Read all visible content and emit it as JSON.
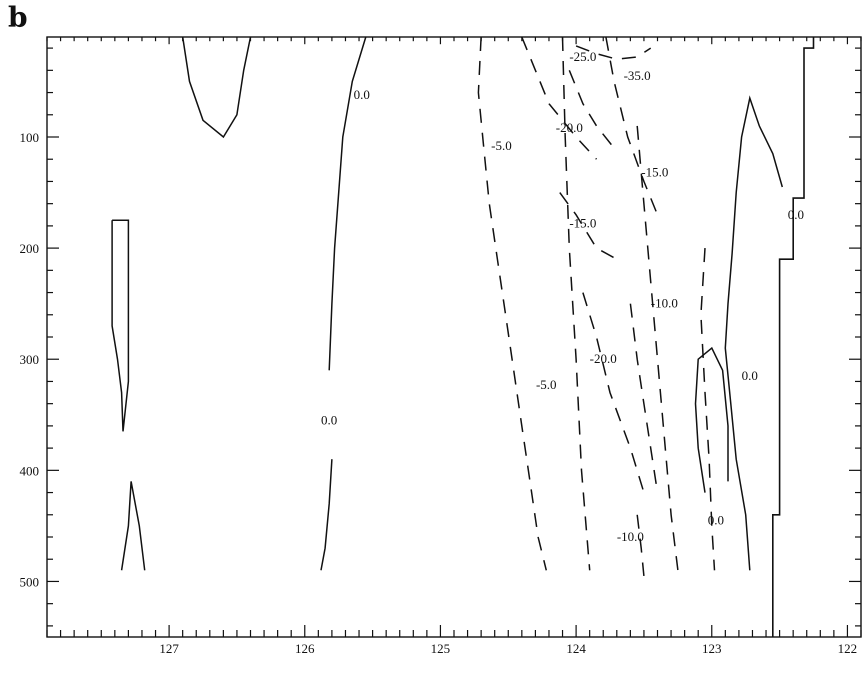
{
  "panel_label": "b",
  "chart_data": {
    "type": "contour",
    "title": "",
    "xlabel": "",
    "ylabel": "",
    "xlim": [
      127.9,
      121.9
    ],
    "ylim": [
      550,
      10
    ],
    "x_reversed": true,
    "y_reversed": true,
    "grid": false,
    "x_ticks": [
      127,
      126,
      125,
      124,
      123,
      122
    ],
    "y_ticks": [
      100,
      200,
      300,
      400,
      500
    ],
    "contour_styles": {
      "solid": "value >= 0",
      "dashed": "value < 0"
    },
    "contours": [
      {
        "level": 0.0,
        "style": "solid",
        "points": [
          [
            126.9,
            10
          ],
          [
            126.85,
            50
          ],
          [
            126.75,
            85
          ],
          [
            126.6,
            100
          ],
          [
            126.5,
            80
          ],
          [
            126.45,
            40
          ],
          [
            126.4,
            10
          ]
        ]
      },
      {
        "level": 0.0,
        "style": "solid",
        "points": [
          [
            125.55,
            10
          ],
          [
            125.65,
            50
          ],
          [
            125.72,
            100
          ],
          [
            125.75,
            150
          ],
          [
            125.78,
            200
          ],
          [
            125.8,
            250
          ],
          [
            125.82,
            310
          ]
        ]
      },
      {
        "level": 0.0,
        "style": "solid",
        "points": [
          [
            125.8,
            390
          ],
          [
            125.82,
            430
          ],
          [
            125.85,
            470
          ],
          [
            125.88,
            490
          ]
        ]
      },
      {
        "level": 0.0,
        "style": "solid",
        "points": [
          [
            127.42,
            175
          ],
          [
            127.42,
            240
          ],
          [
            127.42,
            270
          ],
          [
            127.38,
            300
          ],
          [
            127.35,
            330
          ],
          [
            127.34,
            365
          ],
          [
            127.3,
            320
          ],
          [
            127.3,
            270
          ],
          [
            127.3,
            220
          ],
          [
            127.3,
            175
          ],
          [
            127.42,
            175
          ]
        ]
      },
      {
        "level": 0.0,
        "style": "solid",
        "points": [
          [
            127.35,
            490
          ],
          [
            127.3,
            450
          ],
          [
            127.28,
            410
          ],
          [
            127.22,
            450
          ],
          [
            127.18,
            490
          ]
        ]
      },
      {
        "level": 0.0,
        "style": "solid",
        "points": [
          [
            122.72,
            490
          ],
          [
            122.75,
            440
          ],
          [
            122.82,
            390
          ],
          [
            122.86,
            340
          ],
          [
            122.9,
            290
          ],
          [
            122.88,
            250
          ],
          [
            122.85,
            205
          ],
          [
            122.82,
            150
          ],
          [
            122.78,
            100
          ],
          [
            122.72,
            65
          ],
          [
            122.65,
            90
          ],
          [
            122.55,
            115
          ],
          [
            122.48,
            145
          ]
        ]
      },
      {
        "level": 0.0,
        "style": "solid",
        "points": [
          [
            123.05,
            420
          ],
          [
            123.1,
            380
          ],
          [
            123.12,
            340
          ],
          [
            123.1,
            300
          ],
          [
            123.0,
            290
          ],
          [
            122.92,
            310
          ],
          [
            122.88,
            360
          ],
          [
            122.88,
            410
          ]
        ]
      },
      {
        "level": -5.0,
        "style": "dashed",
        "points": [
          [
            124.7,
            10
          ],
          [
            124.72,
            60
          ],
          [
            124.68,
            110
          ],
          [
            124.64,
            160
          ],
          [
            124.58,
            210
          ],
          [
            124.52,
            260
          ],
          [
            124.46,
            310
          ],
          [
            124.4,
            360
          ],
          [
            124.34,
            410
          ],
          [
            124.28,
            460
          ],
          [
            124.22,
            490
          ]
        ]
      },
      {
        "level": -5.0,
        "style": "dashed",
        "points": [
          [
            124.1,
            10
          ],
          [
            124.08,
            100
          ],
          [
            124.05,
            200
          ],
          [
            124.0,
            300
          ],
          [
            123.96,
            400
          ],
          [
            123.9,
            490
          ]
        ]
      },
      {
        "level": -15.0,
        "style": "dashed",
        "points": [
          [
            124.4,
            10
          ],
          [
            124.3,
            40
          ],
          [
            124.2,
            70
          ],
          [
            124.0,
            100
          ],
          [
            123.85,
            120
          ]
        ]
      },
      {
        "level": -15.0,
        "style": "dashed",
        "points": [
          [
            123.78,
            10
          ],
          [
            123.72,
            50
          ],
          [
            123.62,
            100
          ],
          [
            123.5,
            140
          ],
          [
            123.4,
            170
          ]
        ]
      },
      {
        "level": -15.0,
        "style": "dashed",
        "points": [
          [
            124.12,
            150
          ],
          [
            124.0,
            170
          ],
          [
            123.85,
            200
          ],
          [
            123.7,
            210
          ]
        ]
      },
      {
        "level": -20.0,
        "style": "dashed",
        "points": [
          [
            123.95,
            240
          ],
          [
            123.85,
            280
          ],
          [
            123.75,
            330
          ],
          [
            123.6,
            380
          ],
          [
            123.5,
            420
          ]
        ]
      },
      {
        "level": -20.0,
        "style": "dashed",
        "points": [
          [
            124.05,
            40
          ],
          [
            123.95,
            70
          ],
          [
            123.85,
            90
          ],
          [
            123.72,
            110
          ]
        ]
      },
      {
        "level": -35.0,
        "style": "dashed",
        "points": [
          [
            124.0,
            18
          ],
          [
            123.85,
            25
          ],
          [
            123.7,
            30
          ],
          [
            123.55,
            28
          ],
          [
            123.45,
            20
          ]
        ]
      },
      {
        "level": -10.0,
        "style": "dashed",
        "points": [
          [
            123.55,
            90
          ],
          [
            123.5,
            160
          ],
          [
            123.45,
            230
          ],
          [
            123.4,
            300
          ],
          [
            123.35,
            370
          ],
          [
            123.3,
            440
          ],
          [
            123.25,
            490
          ]
        ]
      },
      {
        "level": -10.0,
        "style": "dashed",
        "points": [
          [
            123.6,
            250
          ],
          [
            123.55,
            300
          ],
          [
            123.5,
            340
          ],
          [
            123.45,
            380
          ],
          [
            123.4,
            420
          ]
        ]
      },
      {
        "level": -10.0,
        "style": "dashed",
        "points": [
          [
            123.05,
            200
          ],
          [
            123.08,
            260
          ],
          [
            123.05,
            330
          ],
          [
            123.02,
            390
          ],
          [
            123.0,
            450
          ],
          [
            122.98,
            490
          ]
        ]
      },
      {
        "level": -10.0,
        "style": "dashed",
        "points": [
          [
            123.55,
            440
          ],
          [
            123.52,
            470
          ],
          [
            123.5,
            495
          ]
        ]
      }
    ],
    "labels": [
      {
        "text": "0.0",
        "x": 125.58,
        "y": 62
      },
      {
        "text": "0.0",
        "x": 125.82,
        "y": 355
      },
      {
        "text": "0.0",
        "x": 122.38,
        "y": 170
      },
      {
        "text": "0.0",
        "x": 122.72,
        "y": 315
      },
      {
        "text": "0.0",
        "x": 122.97,
        "y": 445
      },
      {
        "text": "-5.0",
        "x": 124.55,
        "y": 108
      },
      {
        "text": "-5.0",
        "x": 124.22,
        "y": 323
      },
      {
        "text": "-25.0",
        "x": 123.95,
        "y": 28
      },
      {
        "text": "-35.0",
        "x": 123.55,
        "y": 45
      },
      {
        "text": "-20.0",
        "x": 124.05,
        "y": 92
      },
      {
        "text": "-15.0",
        "x": 123.42,
        "y": 132
      },
      {
        "text": "-15.0",
        "x": 123.95,
        "y": 178
      },
      {
        "text": "-10.0",
        "x": 123.35,
        "y": 250
      },
      {
        "text": "-20.0",
        "x": 123.8,
        "y": 300
      },
      {
        "text": "-10.0",
        "x": 123.6,
        "y": 460
      }
    ],
    "coastline": [
      [
        122.55,
        550
      ],
      [
        122.55,
        440
      ],
      [
        122.5,
        440
      ],
      [
        122.5,
        210
      ],
      [
        122.4,
        210
      ],
      [
        122.4,
        155
      ],
      [
        122.32,
        155
      ],
      [
        122.32,
        20
      ],
      [
        122.25,
        20
      ],
      [
        122.25,
        10
      ]
    ]
  }
}
